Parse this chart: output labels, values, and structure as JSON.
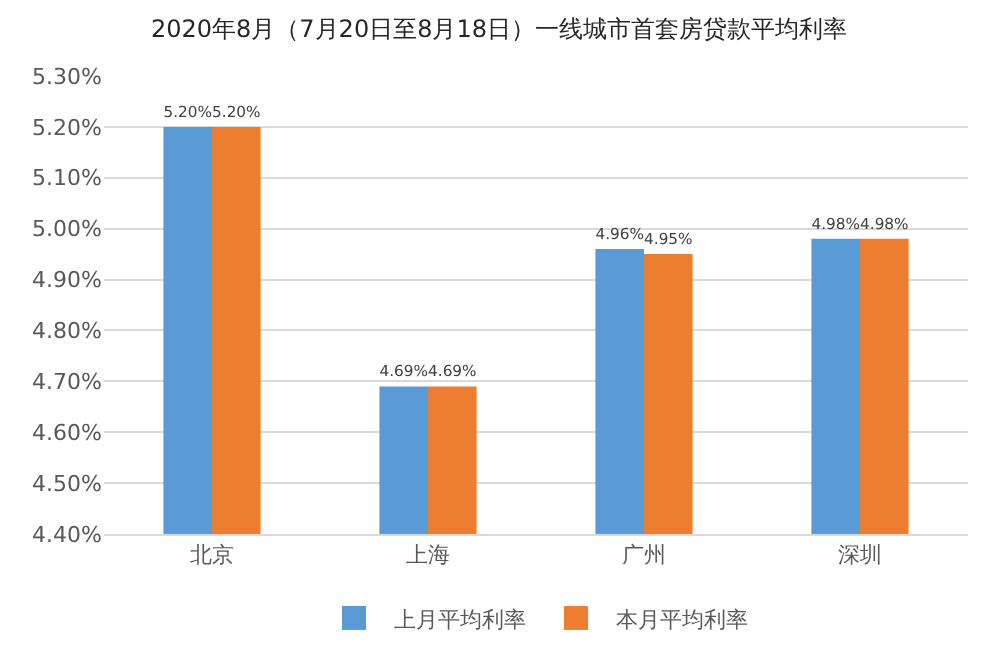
{
  "chart_data": {
    "type": "bar",
    "title": "2020年8月（7月20日至8月18日）一线城市首套房贷款平均利率",
    "categories": [
      "北京",
      "上海",
      "广州",
      "深圳"
    ],
    "series": [
      {
        "name": "上月平均利率",
        "color": "#5b9bd5",
        "values": [
          5.2,
          4.69,
          4.96,
          4.98
        ],
        "value_labels": [
          "5.20%",
          "4.69%",
          "4.96%",
          "4.98%"
        ]
      },
      {
        "name": "本月平均利率",
        "color": "#ed7d31",
        "values": [
          5.2,
          4.69,
          4.95,
          4.98
        ],
        "value_labels": [
          "5.20%",
          "4.69%",
          "4.95%",
          "4.98%"
        ]
      }
    ],
    "ylim": [
      4.4,
      5.3
    ],
    "yticks": [
      {
        "value": 4.4,
        "label": "4.40%"
      },
      {
        "value": 4.5,
        "label": "4.50%"
      },
      {
        "value": 4.6,
        "label": "4.60%"
      },
      {
        "value": 4.7,
        "label": "4.70%"
      },
      {
        "value": 4.8,
        "label": "4.80%"
      },
      {
        "value": 4.9,
        "label": "4.90%"
      },
      {
        "value": 5.0,
        "label": "5.00%"
      },
      {
        "value": 5.1,
        "label": "5.10%"
      },
      {
        "value": 5.2,
        "label": "5.20%"
      },
      {
        "value": 5.3,
        "label": "5.30%"
      }
    ],
    "grid": "y",
    "legend": "bottom"
  }
}
